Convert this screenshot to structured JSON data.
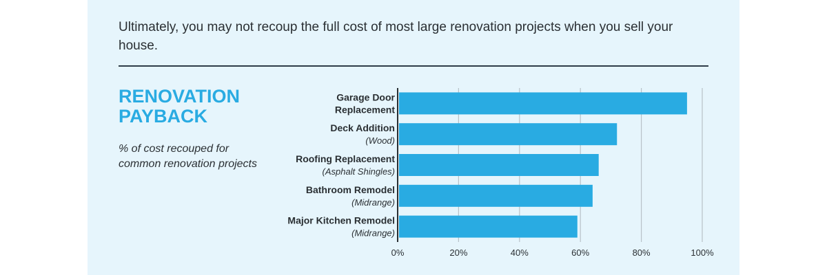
{
  "intro_text": "Ultimately, you may not recoup the full cost of most large renovation projects when you sell your house.",
  "side": {
    "title": "RENOVATION PAYBACK",
    "subtitle": "% of cost recouped for common renovation projects"
  },
  "colors": {
    "panel_background": "#e6f5fc",
    "bar": "#29abe2",
    "title": "#29abe2",
    "text": "#2a2f33",
    "rule": "#2d3b47",
    "grid": "#b8c2c8"
  },
  "chart_data": {
    "type": "bar",
    "orientation": "horizontal",
    "categories": [
      {
        "lines": [
          "Garage Door",
          "Replacement"
        ],
        "sub": ""
      },
      {
        "lines": [
          "Deck Addition"
        ],
        "sub": "(Wood)"
      },
      {
        "lines": [
          "Roofing Replacement"
        ],
        "sub": "(Asphalt Shingles)"
      },
      {
        "lines": [
          "Bathroom Remodel"
        ],
        "sub": "(Midrange)"
      },
      {
        "lines": [
          "Major Kitchen Remodel"
        ],
        "sub": "(Midrange)"
      }
    ],
    "values": [
      95,
      72,
      66,
      64,
      59
    ],
    "xlim": [
      0,
      100
    ],
    "xticks": [
      "0%",
      "20%",
      "40%",
      "60%",
      "80%",
      "100%"
    ],
    "xtick_values": [
      0,
      20,
      40,
      60,
      80,
      100
    ],
    "grid": true,
    "title": "",
    "xlabel": "",
    "ylabel": ""
  }
}
